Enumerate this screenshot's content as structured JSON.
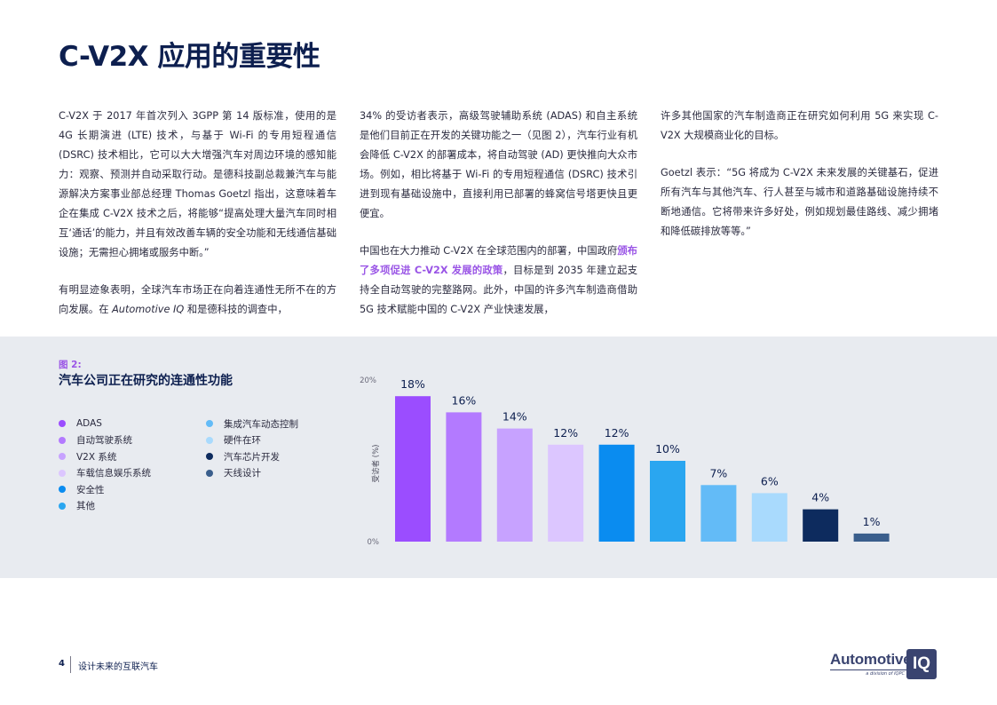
{
  "page": {
    "title": "C-V2X 应用的重要性"
  },
  "body": {
    "col1_p1": "C-V2X 于 2017 年首次列入 3GPP 第 14 版标准，使用的是 4G 长期演进 (LTE) 技术，与基于 Wi-Fi 的专用短程通信 (DSRC) 技术相比，它可以大大增强汽车对周边环境的感知能力：观察、预测并自动采取行动。是德科技副总裁兼汽车与能源解决方案事业部总经理 Thomas Goetzl 指出，这意味着车企在集成 C-V2X 技术之后，将能够“提高处理大量汽车同时相互‘通话’的能力，并且有效改善车辆的安全功能和无线通信基础设施；无需担心拥堵或服务中断。”",
    "col1_p2_a": "有明显迹象表明，全球汽车市场正在向着连通性无所不在的方向发展。在 ",
    "col1_p2_b": "Automotive IQ",
    "col1_p2_c": " 和是德科技的调查中，",
    "col2_p1": "34% 的受访者表示，高级驾驶辅助系统 (ADAS) 和自主系统是他们目前正在开发的关键功能之一（见图 2），汽车行业有机会降低 C-V2X 的部署成本，将自动驾驶 (AD) 更快推向大众市场。例如，相比将基于 Wi-Fi 的专用短程通信 (DSRC) 技术引进到现有基础设施中，直接利用已部署的蜂窝信号塔更快且更便宜。",
    "col2_p2_a": "中国也在大力推动 C-V2X 在全球范围内的部署，中国政府",
    "col2_p2_b": "颁布了多项促进 C-V2X 发展的政策",
    "col2_p2_c": "，目标是到 2035 年建立起支持全自动驾驶的完整路网。此外，中国的许多汽车制造商借助 5G 技术赋能中国的 C-V2X 产业快速发展，",
    "col3_p1": "许多其他国家的汽车制造商正在研究如何利用 5G 来实现 C-V2X 大规模商业化的目标。",
    "col3_p2": "Goetzl 表示：“5G 将成为 C-V2X 未来发展的关键基石，促进所有汽车与其他汽车、行人甚至与城市和道路基础设施持续不断地通信。它将带来许多好处，例如规划最佳路线、减少拥堵和降低碳排放等等。”"
  },
  "figure": {
    "label": "图 2:",
    "title": "汽车公司正在研究的连通性功能"
  },
  "chart_data": {
    "type": "bar",
    "categories": [
      "ADAS",
      "自动驾驶系统",
      "V2X 系统",
      "车载信息娱乐系统",
      "安全性",
      "其他",
      "集成汽车动态控制",
      "硬件在环",
      "汽车芯片开发",
      "天线设计"
    ],
    "values": [
      18,
      16,
      14,
      12,
      12,
      10,
      7,
      6,
      4,
      1
    ],
    "value_labels": [
      "18%",
      "16%",
      "14%",
      "12%",
      "12%",
      "10%",
      "7%",
      "6%",
      "4%",
      "1%"
    ],
    "colors": [
      "#9b4dff",
      "#b37aff",
      "#c7a2ff",
      "#dcc6ff",
      "#0a8cf0",
      "#2aa6f0",
      "#63bbf7",
      "#a9dafd",
      "#0d2b5e",
      "#3a5e8c"
    ],
    "ylabel": "受访者 (%)",
    "ylim": [
      0,
      20
    ],
    "yticks": [
      "0%",
      "20%"
    ],
    "legend_position": "left"
  },
  "footer": {
    "page_number": "4",
    "text": "设计未来的互联汽车"
  },
  "logo": {
    "word": "Automotive",
    "box": "IQ",
    "sub": "a division of IQPC"
  }
}
